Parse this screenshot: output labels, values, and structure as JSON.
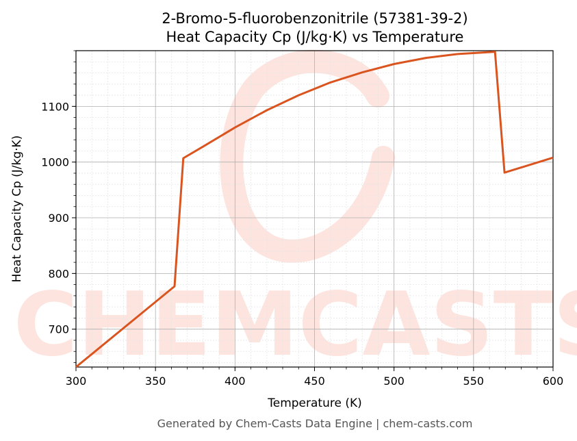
{
  "chart_data": {
    "type": "line",
    "title": "2-Bromo-5-fluorobenzonitrile (57381-39-2)",
    "subtitle": "Heat Capacity Cp (J/kg·K) vs Temperature",
    "xlabel": "Temperature (K)",
    "ylabel": "Heat Capacity Cp (J/kg·K)",
    "xlim": [
      300,
      600
    ],
    "ylim": [
      632,
      1200
    ],
    "xticks": [
      300,
      350,
      400,
      450,
      500,
      550,
      600
    ],
    "yticks": [
      700,
      800,
      900,
      1000,
      1100
    ],
    "grid": true,
    "series": [
      {
        "color": "#d9541e",
        "x": [
          300,
          362,
          367.5,
          380,
          400,
          420,
          440,
          460,
          480,
          500,
          520,
          540,
          563.5,
          569.5,
          600
        ],
        "y": [
          632,
          777,
          1007,
          1028,
          1062,
          1093,
          1120,
          1143,
          1161,
          1176,
          1187,
          1194,
          1198,
          981,
          1008
        ]
      }
    ]
  },
  "watermark": {
    "text": "CHEMCASTS",
    "color": "#fde4df"
  },
  "footer": "Generated by Chem-Casts Data Engine | chem-casts.com"
}
